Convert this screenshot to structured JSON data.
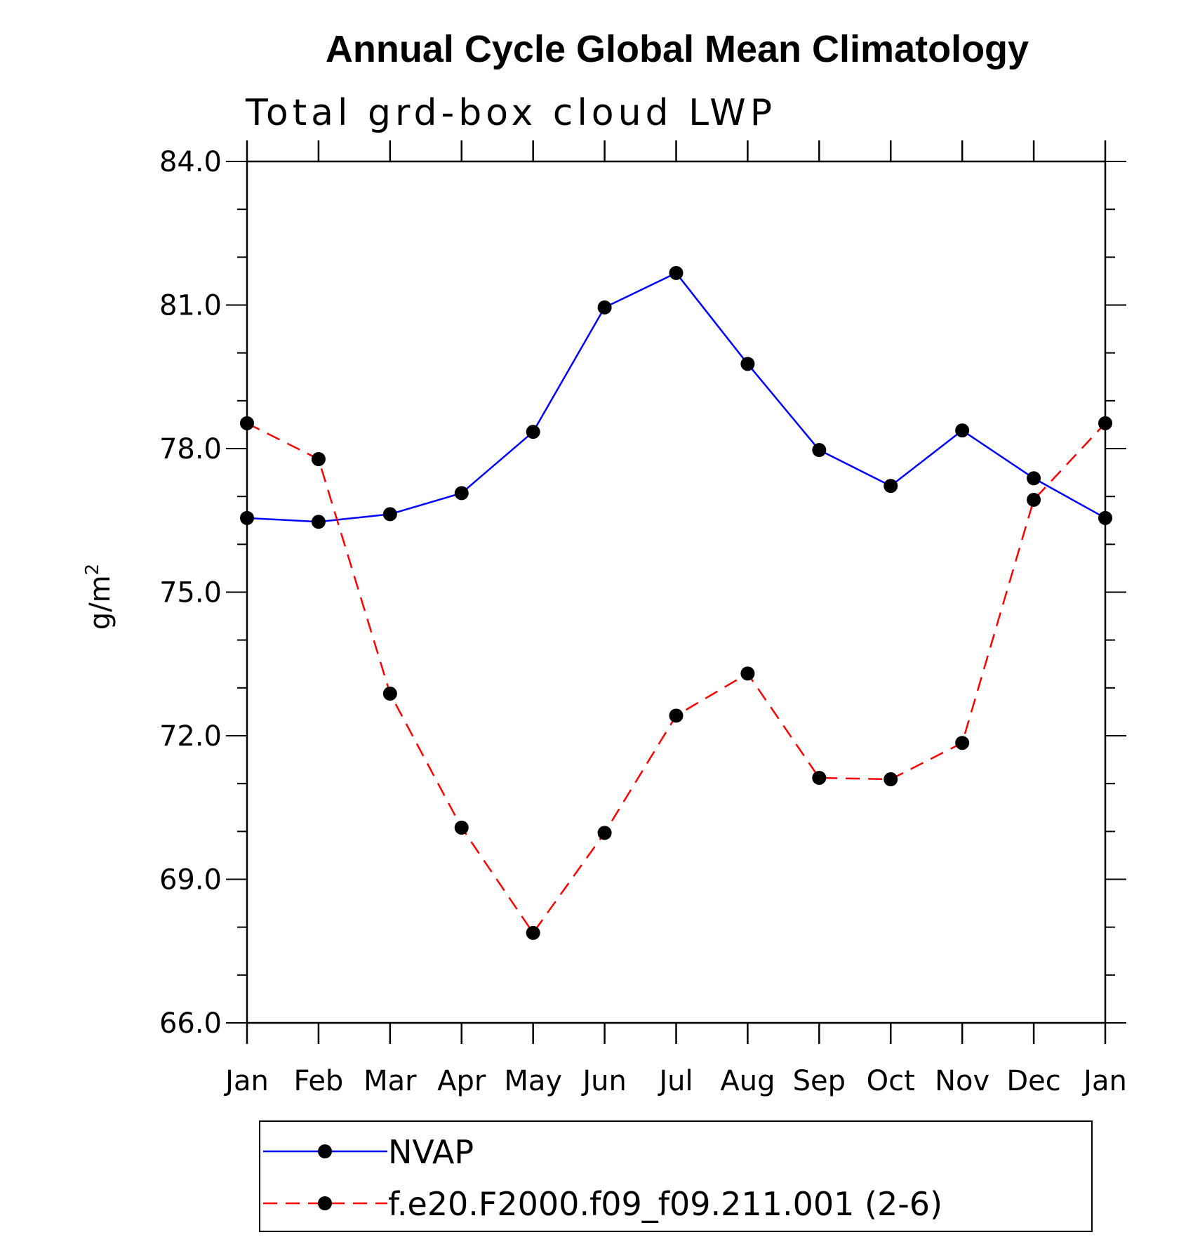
{
  "chart_data": {
    "type": "line",
    "title": "Annual Cycle Global Mean Climatology",
    "subtitle": "Total grd-box cloud LWP",
    "ylabel": "g/m",
    "ylabel_superscript": "2",
    "ylim": [
      66.0,
      84.0
    ],
    "yticks": [
      "84.0",
      "81.0",
      "78.0",
      "75.0",
      "72.0",
      "69.0",
      "66.0"
    ],
    "ytick_values": [
      84,
      81,
      78,
      75,
      72,
      69,
      66
    ],
    "categories": [
      "Jan",
      "Feb",
      "Mar",
      "Apr",
      "May",
      "Jun",
      "Jul",
      "Aug",
      "Sep",
      "Oct",
      "Nov",
      "Dec",
      "Jan"
    ],
    "grid": false,
    "legend_placement": "bottom",
    "series": [
      {
        "name": "NVAP",
        "color": "#0000ff",
        "style": "solid",
        "values": [
          76.55,
          76.47,
          76.63,
          77.07,
          78.35,
          80.95,
          81.67,
          79.77,
          77.97,
          77.22,
          78.38,
          77.38,
          76.55
        ]
      },
      {
        "name": "f.e20.F2000.f09_f09.211.001 (2-6)",
        "color": "#ff0000",
        "style": "dashed",
        "values": [
          78.53,
          77.78,
          72.88,
          70.08,
          67.88,
          69.97,
          72.42,
          73.3,
          71.12,
          71.09,
          71.85,
          76.93,
          78.53
        ]
      }
    ]
  }
}
